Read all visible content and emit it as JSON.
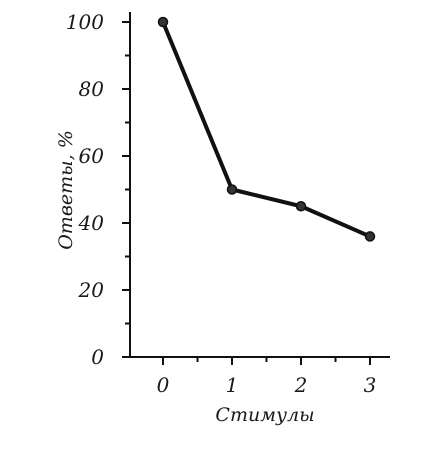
{
  "chart_data": {
    "type": "line",
    "title": "",
    "xlabel": "Стимулы",
    "ylabel": "Ответы, %",
    "x": [
      0,
      1,
      2,
      3
    ],
    "x_ticks": [
      "0",
      "1",
      "2",
      "3"
    ],
    "y_ticks": [
      "0",
      "20",
      "40",
      "60",
      "80",
      "100"
    ],
    "ylim": [
      0,
      100
    ],
    "xlim": [
      -0.5,
      3.4
    ],
    "grid": false,
    "series": [
      {
        "values": [
          100,
          50,
          45,
          36
        ]
      }
    ]
  }
}
